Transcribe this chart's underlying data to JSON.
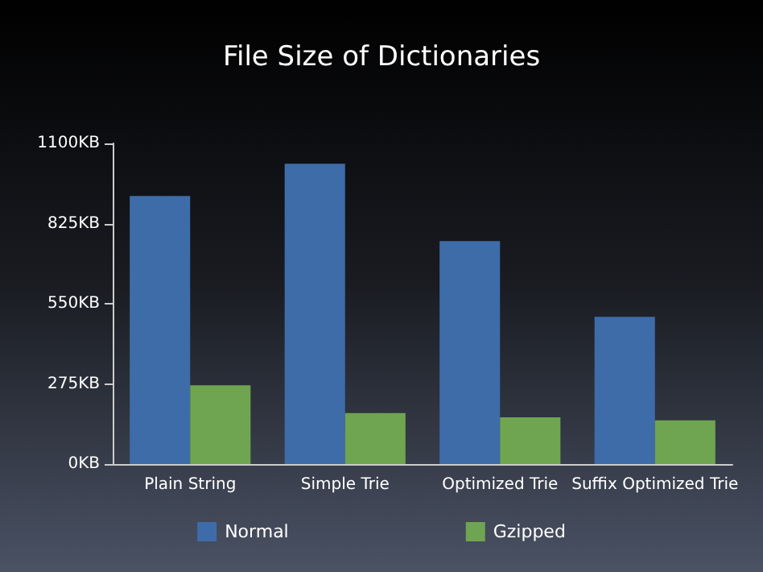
{
  "chart_data": {
    "type": "bar",
    "title": "File Size of Dictionaries",
    "categories": [
      "Plain String",
      "Simple Trie",
      "Optimized Trie",
      "Suffix Optimized Trie"
    ],
    "series": [
      {
        "name": "Normal",
        "color": "#3e6ca8",
        "values": [
          920,
          1030,
          765,
          505
        ]
      },
      {
        "name": "Gzipped",
        "color": "#6fa550",
        "values": [
          270,
          175,
          160,
          150
        ]
      }
    ],
    "ylim": [
      0,
      1100
    ],
    "yticks": [
      {
        "value": 0,
        "label": "0KB"
      },
      {
        "value": 275,
        "label": "275KB"
      },
      {
        "value": 550,
        "label": "550KB"
      },
      {
        "value": 825,
        "label": "825KB"
      },
      {
        "value": 1100,
        "label": "1100KB"
      }
    ],
    "grid": false,
    "legend": "bottom"
  }
}
